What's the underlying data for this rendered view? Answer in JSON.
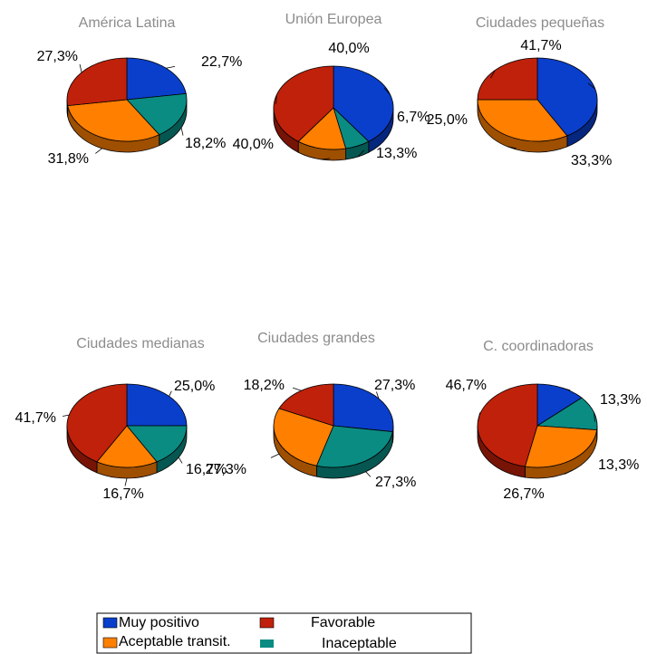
{
  "colors": {
    "muy_positivo": "#0a3fcc",
    "favorable": "#c0210a",
    "aceptable": "#ff7f00",
    "inaceptable": "#0a8c82"
  },
  "legend": {
    "items": [
      {
        "label": "Muy positivo",
        "color": "#0a3fcc"
      },
      {
        "label": "Favorable",
        "color": "#c0210a"
      },
      {
        "label": "Aceptable transit.",
        "color": "#ff7f00"
      },
      {
        "label": "Inaceptable",
        "color": "#0a8c82"
      }
    ]
  },
  "chart_data": [
    {
      "type": "pie",
      "title": "América Latina",
      "categories": [
        "Muy positivo",
        "Inaceptable",
        "Aceptable transit.",
        "Favorable"
      ],
      "values": [
        22.7,
        18.2,
        31.8,
        27.3
      ],
      "labels": [
        "22,7%",
        "18,2%",
        "31,8%",
        "27,3%"
      ]
    },
    {
      "type": "pie",
      "title": "Unión Europea",
      "categories": [
        "Muy positivo",
        "Inaceptable",
        "Aceptable transit.",
        "Favorable"
      ],
      "values": [
        40.0,
        6.7,
        13.3,
        40.0
      ],
      "labels": [
        "40,0%",
        "6,7%",
        "13,3%",
        "40,0%"
      ]
    },
    {
      "type": "pie",
      "title": "Ciudades pequeñas",
      "categories": [
        "Muy positivo",
        "Aceptable transit.",
        "Favorable"
      ],
      "values": [
        41.7,
        33.3,
        25.0
      ],
      "labels": [
        "41,7%",
        "33,3%",
        "25,0%"
      ]
    },
    {
      "type": "pie",
      "title": "Ciudades medianas",
      "categories": [
        "Muy positivo",
        "Inaceptable",
        "Aceptable transit.",
        "Favorable"
      ],
      "values": [
        25.0,
        16.7,
        16.7,
        41.7
      ],
      "labels": [
        "25,0%",
        "16,7%",
        "16,7%",
        "41,7%"
      ]
    },
    {
      "type": "pie",
      "title": "Ciudades grandes",
      "categories": [
        "Muy positivo",
        "Inaceptable",
        "Aceptable transit.",
        "Favorable"
      ],
      "values": [
        27.3,
        27.3,
        27.3,
        18.2
      ],
      "labels": [
        "27,3%",
        "27,3%",
        "27,3%",
        "18,2%"
      ]
    },
    {
      "type": "pie",
      "title": "C. coordinadoras",
      "categories": [
        "Muy positivo",
        "Inaceptable",
        "Aceptable transit.",
        "Favorable"
      ],
      "values": [
        13.3,
        13.3,
        26.7,
        46.7
      ],
      "labels": [
        "13,3%",
        "13,3%",
        "26,7%",
        "46,7%"
      ]
    }
  ]
}
